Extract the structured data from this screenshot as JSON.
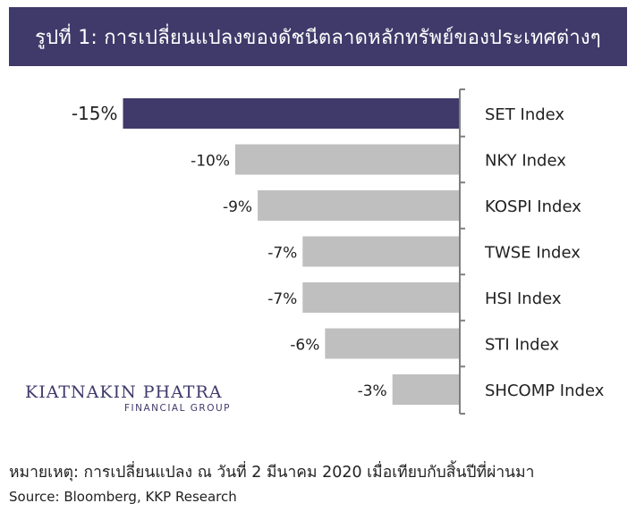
{
  "title": "รูปที่ 1: การเปลี่ยนแปลงของดัชนีตลาดหลักทรัพย์ของประเทศต่างๆ",
  "chart_data": {
    "type": "bar",
    "orientation": "horizontal",
    "categories": [
      "SET Index",
      "NKY Index",
      "KOSPI Index",
      "TWSE Index",
      "HSI Index",
      "STI Index",
      "SHCOMP Index"
    ],
    "values": [
      -15,
      -10,
      -9,
      -7,
      -7,
      -6,
      -3
    ],
    "value_labels": [
      "-15%",
      "-10%",
      "-9%",
      "-7%",
      "-7%",
      "-6%",
      "-3%"
    ],
    "highlight_index": 0,
    "xlim": [
      -15,
      0
    ],
    "grid": false,
    "colors": {
      "highlight": "#3f3a6a",
      "bar": "#bfbfbf",
      "axis": "#7f7f7f"
    }
  },
  "logo": {
    "main": "KIATNAKIN PHATRA",
    "sub": "FINANCIAL GROUP"
  },
  "note": "หมายเหตุ: การเปลี่ยนแปลง ณ วันที่ 2 มีนาคม 2020 เมื่อเทียบกับสิ้นปีที่ผ่านมา",
  "source": "Source: Bloomberg, KKP Research"
}
